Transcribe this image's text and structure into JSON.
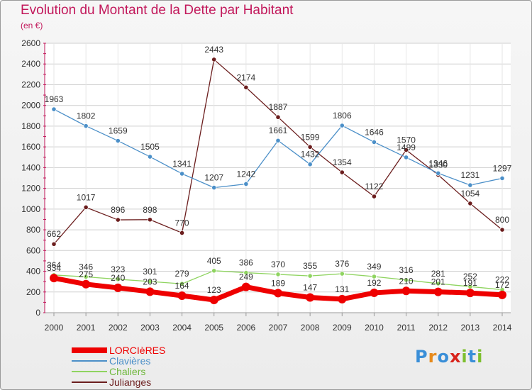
{
  "title": "Evolution du Montant de la Dette par Habitant",
  "subtitle": "(en €)",
  "logo": {
    "text": "Proxiti",
    "colors": [
      "#3a8fd8",
      "#e68a1c",
      "#3a8fd8",
      "#d8241c",
      "#7dbf2e",
      "#3a8fd8",
      "#7dbf2e"
    ]
  },
  "colors": {
    "title": "#c2185b",
    "axis": "#c2185b",
    "grid": "#cfcfcf"
  },
  "chart_data": {
    "type": "line",
    "title": "Evolution du Montant de la Dette par Habitant",
    "subtitle": "(en €)",
    "x": [
      "2000",
      "2001",
      "2002",
      "2003",
      "2004",
      "2005",
      "2006",
      "2007",
      "2008",
      "2009",
      "2010",
      "2011",
      "2012",
      "2013",
      "2014"
    ],
    "yticks": [
      0,
      200,
      400,
      600,
      800,
      1000,
      1200,
      1400,
      1600,
      1800,
      2000,
      2200,
      2400,
      2600
    ],
    "ylim": [
      0,
      2600
    ],
    "grid": true,
    "legend": "bottom-left",
    "series": [
      {
        "name": "Julianges",
        "color": "#6b1d1d",
        "width": 1.3,
        "values": [
          662,
          1017,
          896,
          898,
          770,
          2443,
          2174,
          1887,
          1599,
          1354,
          1122,
          1570,
          1330,
          1054,
          800
        ]
      },
      {
        "name": "Clavières",
        "color": "#4b8fc8",
        "width": 1.3,
        "values": [
          1963,
          1802,
          1659,
          1505,
          1341,
          1207,
          1242,
          1661,
          1432,
          1806,
          1646,
          1499,
          1346,
          1231,
          1297
        ]
      },
      {
        "name": "Chaliers",
        "color": "#8fd460",
        "width": 1.3,
        "values": [
          364,
          346,
          323,
          301,
          279,
          405,
          386,
          370,
          355,
          376,
          349,
          316,
          281,
          252,
          222
        ]
      },
      {
        "name": "LORCIèRES",
        "color": "#ee0000",
        "width": 7,
        "values": [
          334,
          275,
          240,
          203,
          164,
          123,
          249,
          189,
          147,
          131,
          192,
          210,
          201,
          191,
          172
        ]
      }
    ]
  }
}
